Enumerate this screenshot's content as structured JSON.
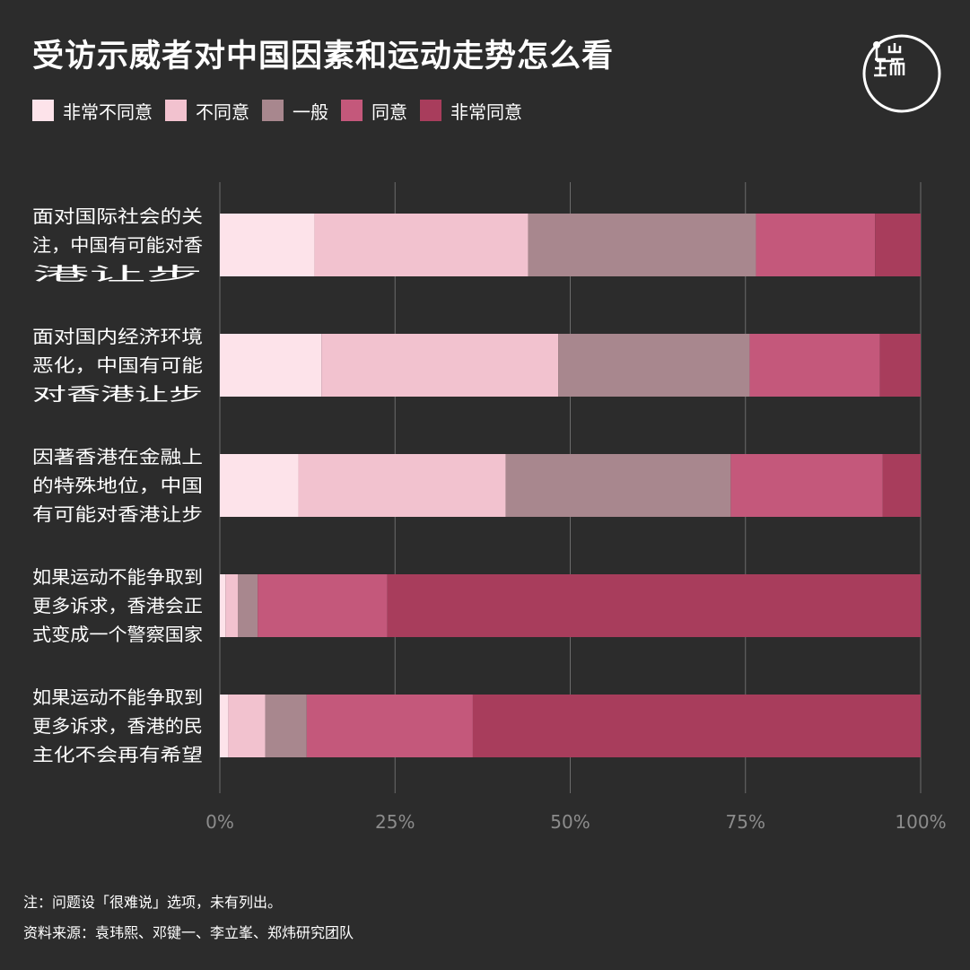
{
  "title": "受访示威者对中国因素和运动走势怎么看",
  "logo_text": "端",
  "colors": {
    "background": "#2c2c2c",
    "series": [
      "#fde3ea",
      "#f2c2cf",
      "#a8878e",
      "#c4587b",
      "#a83d5c"
    ],
    "grid": "#6b6b6b",
    "tick_label": "#8c8c8c"
  },
  "legend": [
    "非常不同意",
    "不同意",
    "一般",
    "同意",
    "非常同意"
  ],
  "chart_data": {
    "type": "bar",
    "orientation": "horizontal",
    "stacked": true,
    "categories": [
      [
        "面对国际社会的关",
        "注，中国有可能对香",
        "港让步"
      ],
      [
        "面对国内经济环境",
        "恶化，中国有可能",
        "对香港让步"
      ],
      [
        "因著香港在金融上",
        "的特殊地位，中国",
        "有可能对香港让步"
      ],
      [
        "如果运动不能争取到",
        "更多诉求，香港会正",
        "式变成一个警察国家"
      ],
      [
        "如果运动不能争取到",
        "更多诉求，香港的民",
        "主化不会再有希望"
      ]
    ],
    "series": [
      {
        "name": "非常不同意",
        "values": [
          13.5,
          14.5,
          11.2,
          0.8,
          1.2
        ]
      },
      {
        "name": "不同意",
        "values": [
          30.5,
          33.8,
          29.6,
          1.8,
          5.3
        ]
      },
      {
        "name": "一般",
        "values": [
          32.5,
          27.3,
          32.1,
          2.8,
          5.9
        ]
      },
      {
        "name": "同意",
        "values": [
          17.0,
          18.6,
          21.7,
          18.5,
          23.7
        ]
      },
      {
        "name": "非常同意",
        "values": [
          6.5,
          5.8,
          5.4,
          76.1,
          63.9
        ]
      }
    ],
    "xlim": [
      0,
      100
    ],
    "xticks": [
      "0%",
      "25%",
      "50%",
      "75%",
      "100%"
    ],
    "grid": true,
    "legend_position": "top-left"
  },
  "notes": [
    "注：问题设「很难说」选项，未有列出。",
    "资料来源：袁玮熙、邓键一、李立峯、郑炜研究团队"
  ]
}
